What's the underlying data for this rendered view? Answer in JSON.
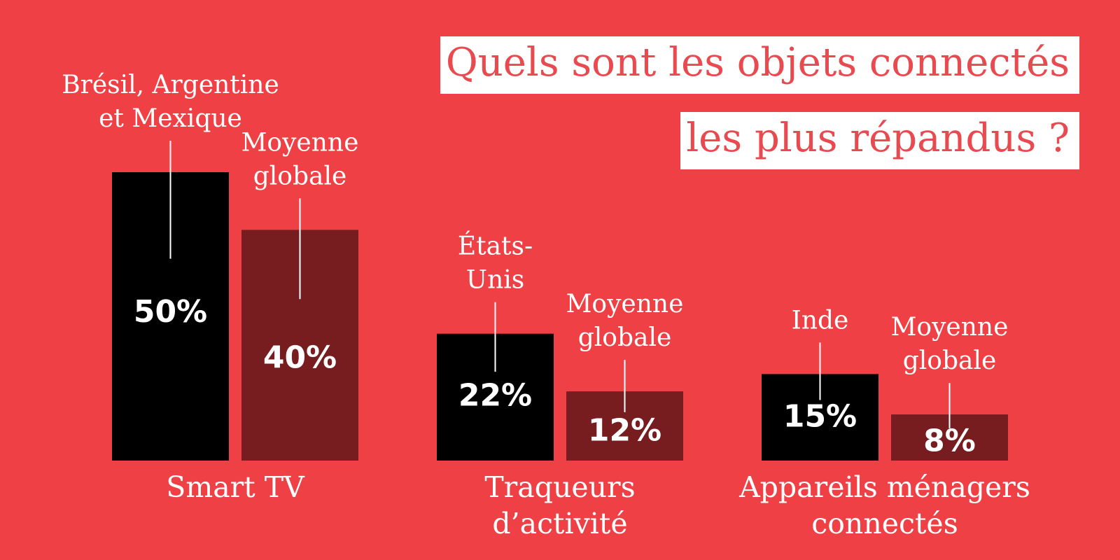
{
  "title": {
    "line1": "Quels sont les objets connectés",
    "line2": "les plus répandus ?"
  },
  "colors": {
    "background": "#ee4045",
    "country": "#000000",
    "global": "#771c1f",
    "text": "#ffffff",
    "title_text": "#e84a50",
    "title_box": "#ffffff"
  },
  "chart_data": {
    "type": "bar",
    "title": "Quels sont les objets connectés les plus répandus ?",
    "unit": "%",
    "ylim": [
      0,
      50
    ],
    "grid": false,
    "categories": [
      {
        "label_lines": [
          "Smart TV"
        ]
      },
      {
        "label_lines": [
          "Traqueurs",
          "d’activité"
        ]
      },
      {
        "label_lines": [
          "Appareils ménagers",
          "connectés"
        ]
      }
    ],
    "series": [
      {
        "role": "country",
        "labels": [
          [
            "Brésil, Argentine",
            "et Mexique"
          ],
          [
            "États-",
            "Unis"
          ],
          [
            "Inde"
          ]
        ],
        "values": [
          50,
          22,
          15
        ],
        "value_labels": [
          "50%",
          "22%",
          "15%"
        ]
      },
      {
        "role": "global",
        "labels": [
          [
            "Moyenne",
            "globale"
          ],
          [
            "Moyenne",
            "globale"
          ],
          [
            "Moyenne",
            "globale"
          ]
        ],
        "values": [
          40,
          12,
          8
        ],
        "value_labels": [
          "40%",
          "12%",
          "8%"
        ]
      }
    ]
  }
}
